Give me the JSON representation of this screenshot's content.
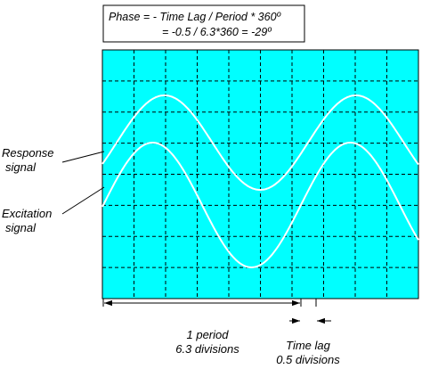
{
  "formula": {
    "line1": "Phase = - Time Lag / Period * 360º",
    "line2": "= -0.5 / 6.3*360 = -29º"
  },
  "labels": {
    "response": [
      "Response",
      "signal"
    ],
    "excitation": [
      "Excitation",
      "signal"
    ],
    "period": [
      "1 period",
      "6.3 divisions"
    ],
    "time_lag": [
      "Time lag",
      "0.5 divisions"
    ]
  },
  "scope": {
    "background_color": "#00ffff",
    "grid": "dashed",
    "grid_divisions_x": 10,
    "grid_divisions_y": 8
  },
  "signals": {
    "period_divisions": 6.3,
    "time_lag_divisions": 0.5,
    "phase_degrees": -29
  }
}
